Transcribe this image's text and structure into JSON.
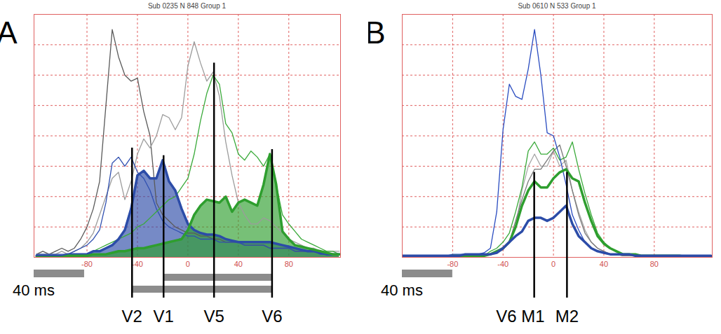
{
  "chart_data": [
    {
      "type": "line",
      "panel_label": "A",
      "title": "Sub 0235 N 848 Group 1",
      "x": [
        -120,
        -115,
        -110,
        -105,
        -100,
        -95,
        -90,
        -85,
        -80,
        -75,
        -70,
        -65,
        -60,
        -55,
        -50,
        -45,
        -40,
        -35,
        -30,
        -25,
        -20,
        -15,
        -10,
        -5,
        0,
        5,
        10,
        15,
        20,
        25,
        30,
        35,
        40,
        45,
        50,
        55,
        60,
        65,
        70,
        75,
        80,
        85,
        90,
        95,
        100,
        105,
        110,
        115,
        120
      ],
      "series": [
        {
          "color": "#5a5a5a",
          "line_style": "thin",
          "type": "line",
          "values": [
            0.1,
            0.2,
            0.1,
            0.2,
            0.3,
            0.2,
            0.3,
            0.6,
            1.0,
            1.6,
            2.5,
            5.0,
            7.5,
            6.6,
            6.0,
            5.8,
            5.9,
            4.8,
            4.0,
            1.8,
            1.4,
            1.2,
            1.0,
            0.9,
            0.8,
            0.8,
            0.7,
            0.7,
            0.6,
            0.6,
            0.5,
            0.5,
            0.5,
            0.4,
            0.4,
            0.4,
            0.4,
            0.3,
            0.3,
            0.3,
            0.3,
            0.2,
            0.2,
            0.2,
            0.2,
            0.2,
            0.1,
            0.1,
            0.1
          ]
        },
        {
          "color": "#9c9c9c",
          "line_style": "thin",
          "type": "line",
          "values": [
            0.1,
            0.1,
            0.1,
            0.1,
            0.2,
            0.1,
            0.2,
            0.3,
            0.5,
            0.8,
            1.4,
            2.0,
            2.6,
            2.8,
            1.9,
            2.5,
            3.4,
            3.9,
            3.6,
            4.0,
            4.7,
            4.6,
            4.2,
            4.6,
            6.3,
            7.1,
            6.4,
            5.8,
            6.1,
            5.3,
            3.8,
            2.7,
            1.8,
            1.4,
            1.1,
            1.1,
            1.3,
            1.2,
            1.0,
            0.8,
            0.6,
            0.5,
            0.4,
            0.3,
            0.3,
            0.2,
            0.2,
            0.2,
            0.2
          ]
        },
        {
          "color": "#2c4ca8",
          "line_style": "bold",
          "type": "area",
          "values": [
            0.05,
            0.05,
            0.05,
            0.05,
            0.05,
            0.1,
            0.1,
            0.1,
            0.1,
            0.2,
            0.2,
            0.3,
            0.4,
            0.6,
            0.9,
            1.6,
            2.7,
            2.85,
            2.6,
            2.6,
            3.2,
            2.5,
            2.2,
            1.6,
            1.1,
            0.9,
            0.8,
            0.75,
            0.75,
            0.7,
            0.6,
            0.55,
            0.5,
            0.5,
            0.5,
            0.5,
            0.5,
            0.5,
            0.45,
            0.4,
            0.35,
            0.3,
            0.25,
            0.2,
            0.2,
            0.15,
            0.1,
            0.1,
            0.1
          ]
        },
        {
          "color": "#2e9e2e",
          "line_style": "bold",
          "type": "area",
          "values": [
            0,
            0,
            0,
            0,
            0,
            0.05,
            0.05,
            0.05,
            0.05,
            0.1,
            0.1,
            0.1,
            0.15,
            0.2,
            0.2,
            0.25,
            0.3,
            0.3,
            0.35,
            0.4,
            0.45,
            0.5,
            0.55,
            0.6,
            0.9,
            1.4,
            1.7,
            1.9,
            1.85,
            1.8,
            2.0,
            1.5,
            1.8,
            1.9,
            1.8,
            1.7,
            2.4,
            3.4,
            2.4,
            0.85,
            0.6,
            0.4,
            0.35,
            0.3,
            0.25,
            0.2,
            0.15,
            0.1,
            0.1
          ]
        },
        {
          "color": "#3050b0",
          "line_style": "thin",
          "type": "line",
          "values": [
            0.1,
            0.1,
            0.1,
            0.1,
            0.1,
            0.1,
            0.2,
            0.3,
            0.4,
            0.6,
            0.9,
            1.8,
            3.1,
            3.3,
            3.0,
            3.3,
            2.8,
            2.6,
            2.2,
            1.6,
            1.2,
            1.0,
            0.9,
            0.8,
            0.7,
            0.7,
            0.6,
            0.6,
            0.6,
            0.5,
            0.5,
            0.5,
            0.5,
            0.4,
            0.4,
            0.4,
            0.4,
            0.3,
            0.3,
            0.3,
            0.3,
            0.2,
            0.2,
            0.2,
            0.2,
            0.1,
            0.1,
            0.1,
            0.1
          ]
        },
        {
          "color": "#3aaa3a",
          "line_style": "thin",
          "type": "line",
          "values": [
            0.02,
            0.02,
            0.02,
            0.05,
            0.05,
            0.05,
            0.05,
            0.1,
            0.1,
            0.2,
            0.3,
            0.4,
            0.5,
            0.6,
            0.7,
            0.8,
            1.0,
            1.1,
            1.3,
            1.5,
            1.7,
            1.9,
            2.0,
            2.3,
            2.6,
            3.4,
            4.5,
            5.4,
            6.0,
            5.7,
            4.4,
            4.1,
            3.4,
            3.2,
            3.5,
            3.3,
            3.0,
            3.4,
            2.4,
            1.4,
            1.1,
            0.85,
            0.6,
            0.5,
            0.4,
            0.3,
            0.2,
            0.2,
            0.1
          ]
        }
      ],
      "xlim": [
        -122,
        121
      ],
      "xticks": [
        -80,
        -40,
        0,
        40,
        80
      ],
      "ylim": [
        0,
        8
      ],
      "yticks": [
        0,
        1,
        2,
        3,
        4,
        5,
        6,
        7,
        8
      ],
      "grid": true,
      "tick_labels": "x",
      "markers": [
        {
          "label": "V2",
          "x": -44,
          "y": 3.6
        },
        {
          "label": "V1",
          "x": -19,
          "y": 3.35
        },
        {
          "label": "V5",
          "x": 21,
          "y": 6.4
        },
        {
          "label": "V6",
          "x": 67,
          "y": 3.55
        }
      ],
      "intervals": [
        {
          "from": "V1",
          "to": "V6"
        },
        {
          "from": "V2",
          "to": "V6"
        }
      ],
      "scale_bar": {
        "length": 40,
        "label": "40 ms"
      }
    },
    {
      "type": "line",
      "panel_label": "B",
      "title": "Sub 0610 N 533 Group 1",
      "x": [
        -120,
        -115,
        -110,
        -105,
        -100,
        -95,
        -90,
        -85,
        -80,
        -75,
        -70,
        -65,
        -60,
        -55,
        -50,
        -45,
        -40,
        -35,
        -30,
        -25,
        -20,
        -15,
        -10,
        -5,
        0,
        5,
        10,
        15,
        20,
        25,
        30,
        35,
        40,
        45,
        50,
        55,
        60,
        65,
        70,
        75,
        80,
        85,
        90,
        95,
        100,
        105,
        110,
        115,
        120,
        125
      ],
      "series": [
        {
          "color": "#a8a8a8",
          "line_style": "thin",
          "type": "line",
          "values": [
            0.02,
            0.02,
            0.02,
            0.02,
            0.02,
            0.02,
            0.02,
            0.02,
            0.05,
            0.05,
            0.05,
            0.05,
            0.05,
            0.05,
            0.1,
            0.2,
            0.3,
            0.5,
            1.0,
            2.2,
            3.0,
            3.4,
            3.0,
            3.0,
            3.5,
            3.0,
            3.2,
            2.2,
            1.5,
            0.9,
            0.5,
            0.3,
            0.2,
            0.1,
            0.1,
            0.05,
            0.05,
            0.05,
            0.05,
            0.05,
            0.05,
            0.05,
            0.05,
            0.05,
            0.05,
            0.02,
            0.02,
            0.02,
            0.02,
            0.02
          ]
        },
        {
          "color": "#7a7a7a",
          "line_style": "thin",
          "type": "line",
          "values": [
            0.02,
            0.02,
            0.02,
            0.02,
            0.02,
            0.02,
            0.02,
            0.02,
            0.05,
            0.05,
            0.05,
            0.05,
            0.05,
            0.05,
            0.1,
            0.15,
            0.25,
            0.5,
            1.2,
            1.9,
            2.5,
            2.9,
            2.9,
            3.2,
            3.5,
            3.7,
            3.0,
            2.2,
            1.4,
            0.8,
            0.5,
            0.3,
            0.2,
            0.1,
            0.1,
            0.05,
            0.05,
            0.05,
            0.05,
            0.05,
            0.05,
            0.05,
            0.05,
            0.05,
            0.05,
            0.02,
            0.02,
            0.02,
            0.02,
            0.02
          ]
        },
        {
          "color": "#3aaa3a",
          "line_style": "thin",
          "type": "line",
          "values": [
            0.02,
            0.02,
            0.02,
            0.02,
            0.02,
            0.02,
            0.02,
            0.02,
            0.05,
            0.05,
            0.05,
            0.05,
            0.05,
            0.05,
            0.2,
            0.3,
            0.5,
            0.8,
            1.5,
            2.3,
            3.5,
            3.8,
            3.4,
            3.4,
            3.6,
            3.2,
            3.3,
            3.8,
            2.9,
            2.1,
            1.4,
            0.8,
            0.5,
            0.3,
            0.2,
            0.1,
            0.1,
            0.1,
            0.05,
            0.05,
            0.05,
            0.05,
            0.05,
            0.05,
            0.05,
            0.02,
            0.02,
            0.02,
            0.02,
            0.02
          ]
        },
        {
          "color": "#2e9e2e",
          "line_style": "bold",
          "type": "line",
          "values": [
            0.02,
            0.02,
            0.02,
            0.02,
            0.02,
            0.02,
            0.02,
            0.02,
            0.05,
            0.05,
            0.05,
            0.05,
            0.05,
            0.05,
            0.1,
            0.2,
            0.3,
            0.5,
            1.0,
            1.7,
            2.2,
            2.5,
            2.3,
            2.3,
            2.6,
            2.8,
            2.9,
            2.6,
            2.5,
            1.8,
            1.2,
            0.7,
            0.45,
            0.3,
            0.2,
            0.1,
            0.1,
            0.1,
            0.05,
            0.05,
            0.05,
            0.05,
            0.05,
            0.05,
            0.05,
            0.02,
            0.02,
            0.02,
            0.02,
            0.02
          ]
        },
        {
          "color": "#2a4cc0",
          "line_style": "thin",
          "type": "line",
          "values": [
            0.05,
            0.05,
            0.05,
            0.05,
            0.05,
            0.05,
            0.05,
            0.05,
            0.1,
            0.1,
            0.1,
            0.1,
            0.1,
            0.15,
            0.3,
            1.5,
            4.2,
            5.7,
            5.3,
            5.2,
            6.2,
            7.5,
            6.0,
            4.1,
            4.0,
            3.3,
            2.4,
            1.4,
            0.9,
            0.5,
            0.3,
            0.2,
            0.15,
            0.1,
            0.1,
            0.1,
            0.1,
            0.05,
            0.05,
            0.05,
            0.05,
            0.05,
            0.05,
            0.05,
            0.05,
            0.05,
            0.05,
            0.05,
            0.05,
            0.05
          ]
        },
        {
          "color": "#2c4ca8",
          "line_style": "bold",
          "type": "line",
          "values": [
            0.05,
            0.05,
            0.05,
            0.05,
            0.05,
            0.05,
            0.05,
            0.05,
            0.05,
            0.05,
            0.1,
            0.1,
            0.1,
            0.1,
            0.1,
            0.15,
            0.3,
            0.5,
            0.7,
            0.85,
            1.2,
            1.3,
            1.3,
            1.2,
            1.3,
            1.5,
            1.7,
            1.1,
            0.7,
            0.5,
            0.3,
            0.2,
            0.15,
            0.1,
            0.1,
            0.1,
            0.1,
            0.05,
            0.05,
            0.05,
            0.05,
            0.05,
            0.05,
            0.05,
            0.05,
            0.05,
            0.05,
            0.05,
            0.05,
            0.05
          ]
        }
      ],
      "xlim": [
        -120,
        126
      ],
      "xticks": [
        -80,
        -40,
        0,
        40,
        80
      ],
      "ylim": [
        0,
        8
      ],
      "yticks": [
        0,
        1,
        2,
        3,
        4,
        5,
        6,
        7,
        8
      ],
      "grid": true,
      "tick_labels": "x",
      "markers": [
        {
          "label": "V6",
          "x": -15,
          "y": 2.8
        },
        {
          "label": "M1",
          "x": -15,
          "y": 2.8
        },
        {
          "label": "M2",
          "x": 11,
          "y": 2.8
        }
      ],
      "intervals": [],
      "scale_bar": {
        "length": 40,
        "label": "40 ms"
      }
    }
  ]
}
